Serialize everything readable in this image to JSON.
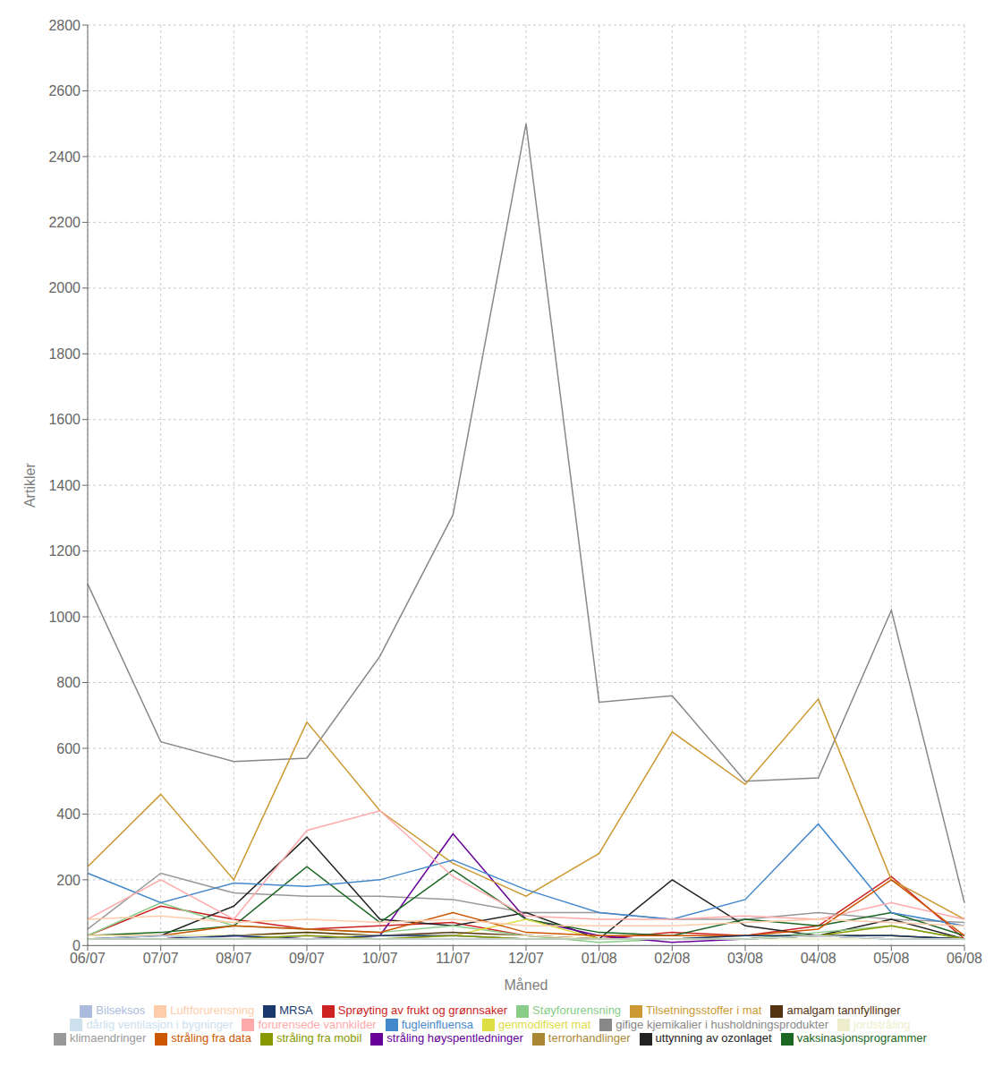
{
  "chart_data": {
    "type": "line",
    "categories": [
      "06/07",
      "07/07",
      "08/07",
      "09/07",
      "10/07",
      "11/07",
      "12/07",
      "01/08",
      "02/08",
      "03/08",
      "04/08",
      "05/08",
      "06/08"
    ],
    "xlabel": "Måned",
    "ylabel": "Artikler",
    "ylim": [
      0,
      2800
    ],
    "yticks": [
      0,
      200,
      400,
      600,
      800,
      1000,
      1200,
      1400,
      1600,
      1800,
      2000,
      2200,
      2400,
      2600,
      2800
    ],
    "grid": true,
    "legend": "bottom",
    "series": [
      {
        "name": "Sprøyting av frukt og grønnsaker",
        "color": "#cc2222",
        "values": [
          30,
          120,
          80,
          50,
          60,
          70,
          30,
          20,
          40,
          30,
          60,
          210,
          20
        ]
      },
      {
        "name": "klimaendringer",
        "color": "#999999",
        "values": [
          50,
          220,
          160,
          150,
          150,
          140,
          100,
          100,
          80,
          80,
          100,
          80,
          70
        ]
      },
      {
        "name": "uttynning av ozonlaget",
        "color": "#222222",
        "values": [
          20,
          30,
          120,
          330,
          80,
          60,
          100,
          20,
          200,
          60,
          30,
          80,
          20
        ]
      },
      {
        "name": "gifige kjemikalier i husholdningsprodukter",
        "color": "#888888",
        "values": [
          1100,
          620,
          560,
          570,
          880,
          1310,
          2500,
          740,
          760,
          500,
          510,
          1020,
          130
        ]
      },
      {
        "name": "Støyforurensning",
        "color": "#88cc88",
        "values": [
          30,
          130,
          60,
          50,
          40,
          60,
          30,
          10,
          20,
          20,
          40,
          60,
          20
        ]
      },
      {
        "name": "stråling høyspentledninger",
        "color": "#660099",
        "values": [
          20,
          20,
          30,
          20,
          30,
          340,
          80,
          30,
          10,
          20,
          30,
          20,
          20
        ]
      },
      {
        "name": "vaksinasjonsprogrammer",
        "color": "#1a6622",
        "values": [
          30,
          40,
          60,
          240,
          70,
          230,
          80,
          40,
          30,
          80,
          60,
          100,
          30
        ]
      },
      {
        "name": "Tilsetningsstoffer i mat",
        "color": "#cc9933",
        "values": [
          240,
          460,
          200,
          680,
          410,
          250,
          150,
          280,
          650,
          490,
          750,
          200,
          80
        ]
      },
      {
        "name": "fugleinfluensa",
        "color": "#4488cc",
        "values": [
          220,
          130,
          190,
          180,
          200,
          260,
          170,
          100,
          80,
          140,
          370,
          100,
          60
        ]
      },
      {
        "name": "forurensede vannkilder",
        "color": "#ffaaaa",
        "values": [
          80,
          200,
          80,
          350,
          410,
          210,
          90,
          80,
          80,
          90,
          80,
          130,
          80
        ]
      },
      {
        "name": "genmodifisert mat",
        "color": "#dddd44",
        "values": [
          30,
          30,
          30,
          40,
          30,
          30,
          80,
          20,
          20,
          30,
          30,
          30,
          20
        ]
      },
      {
        "name": "amalgam tannfyllinger",
        "color": "#553311",
        "values": [
          20,
          20,
          30,
          40,
          30,
          40,
          30,
          20,
          20,
          20,
          30,
          30,
          20
        ]
      },
      {
        "name": "stråling fra data",
        "color": "#cc5500",
        "values": [
          30,
          30,
          60,
          50,
          40,
          100,
          40,
          30,
          30,
          30,
          50,
          200,
          30
        ]
      },
      {
        "name": "jordstråling",
        "color": "#eeeecc",
        "values": [
          30,
          30,
          30,
          30,
          30,
          30,
          30,
          20,
          20,
          20,
          20,
          20,
          20
        ]
      },
      {
        "name": "MRSA",
        "color": "#1a3a6e",
        "values": [
          20,
          20,
          30,
          20,
          30,
          30,
          20,
          20,
          20,
          30,
          30,
          30,
          20
        ]
      },
      {
        "name": "Luftforurensning",
        "color": "#ffccaa",
        "values": [
          80,
          90,
          70,
          80,
          70,
          80,
          60,
          60,
          60,
          70,
          80,
          70,
          60
        ]
      },
      {
        "name": "Bilseksos",
        "color": "#aabbdd",
        "values": [
          20,
          30,
          20,
          30,
          20,
          30,
          20,
          20,
          20,
          20,
          30,
          20,
          20
        ]
      },
      {
        "name": "terrorhandlinger",
        "color": "#aa8833",
        "values": [
          20,
          20,
          20,
          20,
          20,
          20,
          20,
          20,
          20,
          20,
          30,
          20,
          20
        ]
      },
      {
        "name": "stråling fra mobil",
        "color": "#889900",
        "values": [
          20,
          20,
          20,
          30,
          20,
          30,
          20,
          20,
          20,
          20,
          30,
          60,
          20
        ]
      },
      {
        "name": "dårlig ventilasjon i bygninger",
        "color": "#cce0ee",
        "values": [
          20,
          20,
          20,
          20,
          20,
          20,
          20,
          20,
          20,
          20,
          30,
          20,
          20
        ]
      }
    ]
  }
}
